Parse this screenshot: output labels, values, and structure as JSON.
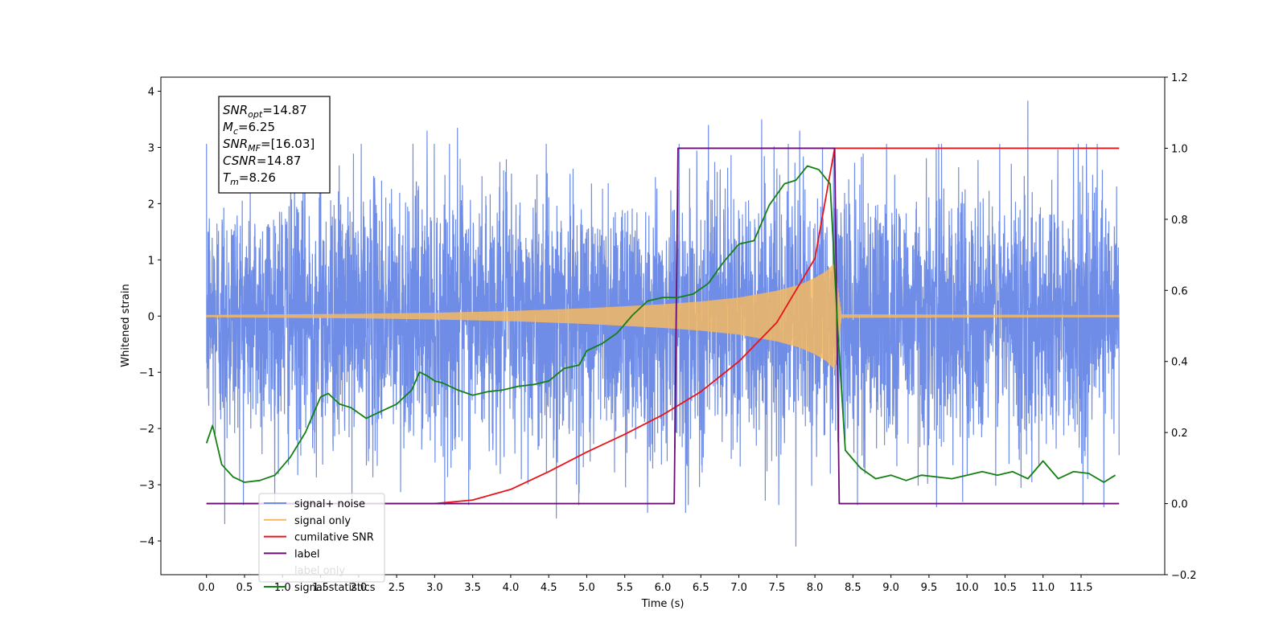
{
  "chart_data": {
    "type": "line",
    "xlabel": "Time (s)",
    "ylabel": "Whitened strain",
    "xlim": [
      -0.6,
      12.6
    ],
    "ylim": [
      -4.6,
      4.25
    ],
    "y2lim": [
      -0.2,
      1.2
    ],
    "xticks": [
      "0.0",
      "0.5",
      "1.0",
      "1.5",
      "2.0",
      "2.5",
      "3.0",
      "3.5",
      "4.0",
      "4.5",
      "5.0",
      "5.5",
      "6.0",
      "6.5",
      "7.0",
      "7.5",
      "8.0",
      "8.5",
      "9.0",
      "9.5",
      "10.0",
      "10.5",
      "11.0",
      "11.5"
    ],
    "yticks": [
      "4",
      "3",
      "2",
      "1",
      "0",
      "−1",
      "−2",
      "−3",
      "−4"
    ],
    "y2ticks": [
      "1.2",
      "1.0",
      "0.8",
      "0.6",
      "0.4",
      "0.2",
      "0.0",
      "−0.2"
    ],
    "grid": false,
    "legend_position": "lower-left",
    "annotation": {
      "lines": [
        {
          "sym": "SNR",
          "sub": "opt",
          "value": "=14.87"
        },
        {
          "sym": "M",
          "sub": "c",
          "value": "=6.25"
        },
        {
          "sym": "SNR",
          "sub": "MF",
          "value": "=[16.03]"
        },
        {
          "sym": "CSNR",
          "sub": "",
          "value": "=14.87"
        },
        {
          "sym": "T",
          "sub": "m",
          "value": "=8.26"
        }
      ]
    },
    "series": [
      {
        "name": "signal+ noise",
        "color": "#6f8de6",
        "axis": "left",
        "kind": "noise",
        "x_range": [
          0.0,
          12.0
        ],
        "typical_amplitude": 1.2,
        "peak_max": 3.83,
        "peak_min": -4.1,
        "strong_peaks": [
          [
            2.9,
            3.3
          ],
          [
            3.3,
            3.35
          ],
          [
            6.6,
            3.4
          ],
          [
            7.3,
            3.5
          ],
          [
            7.8,
            3.3
          ],
          [
            8.1,
            3.0
          ],
          [
            10.8,
            3.83
          ],
          [
            11.4,
            3.0
          ],
          [
            0.24,
            -3.7
          ],
          [
            4.6,
            -3.6
          ],
          [
            5.8,
            -3.5
          ],
          [
            6.3,
            -3.5
          ],
          [
            7.75,
            -4.1
          ],
          [
            9.6,
            -3.4
          ],
          [
            11.8,
            -3.4
          ]
        ]
      },
      {
        "name": "signal only",
        "color": "#f5b860",
        "axis": "left",
        "kind": "chirp",
        "x": [
          0.0,
          1.0,
          2.0,
          3.0,
          4.0,
          5.0,
          6.0,
          6.5,
          7.0,
          7.5,
          7.8,
          8.0,
          8.15,
          8.26,
          8.35,
          12.0
        ],
        "envelope": [
          0.02,
          0.03,
          0.04,
          0.06,
          0.09,
          0.14,
          0.21,
          0.26,
          0.33,
          0.45,
          0.56,
          0.68,
          0.8,
          0.95,
          0.03,
          0.02
        ]
      },
      {
        "name": "cumilative SNR",
        "color": "#e8141b",
        "axis": "right",
        "x": [
          0.0,
          3.0,
          3.5,
          4.0,
          4.5,
          5.0,
          5.5,
          6.0,
          6.5,
          7.0,
          7.5,
          8.0,
          8.26,
          12.0
        ],
        "values": [
          0.0,
          0.0,
          0.01,
          0.04,
          0.09,
          0.145,
          0.195,
          0.25,
          0.315,
          0.4,
          0.51,
          0.69,
          1.0,
          1.0
        ]
      },
      {
        "name": "label",
        "color": "#6a0d73",
        "axis": "right",
        "x": [
          0.0,
          6.15,
          6.2,
          8.26,
          8.32,
          12.0
        ],
        "values": [
          0.0,
          0.0,
          1.0,
          1.0,
          0.0,
          0.0
        ]
      },
      {
        "name": "label only",
        "color": "#ffffff",
        "axis": "right",
        "hidden": true,
        "x": [],
        "values": []
      },
      {
        "name": "signal statistics",
        "color": "#138013",
        "axis": "right",
        "x": [
          0.0,
          0.08,
          0.2,
          0.35,
          0.5,
          0.7,
          0.9,
          1.1,
          1.3,
          1.5,
          1.6,
          1.75,
          1.9,
          2.1,
          2.3,
          2.5,
          2.7,
          2.8,
          2.9,
          3.0,
          3.1,
          3.3,
          3.5,
          3.7,
          3.9,
          4.1,
          4.3,
          4.5,
          4.7,
          4.9,
          5.0,
          5.2,
          5.4,
          5.6,
          5.8,
          6.0,
          6.2,
          6.4,
          6.6,
          6.8,
          7.0,
          7.2,
          7.4,
          7.6,
          7.75,
          7.9,
          8.05,
          8.2,
          8.3,
          8.4,
          8.6,
          8.8,
          9.0,
          9.2,
          9.4,
          9.6,
          9.8,
          10.0,
          10.2,
          10.4,
          10.6,
          10.8,
          11.0,
          11.2,
          11.4,
          11.6,
          11.8,
          11.95
        ],
        "values": [
          0.17,
          0.22,
          0.11,
          0.075,
          0.06,
          0.065,
          0.08,
          0.13,
          0.2,
          0.3,
          0.31,
          0.28,
          0.27,
          0.24,
          0.26,
          0.28,
          0.32,
          0.37,
          0.36,
          0.345,
          0.34,
          0.32,
          0.305,
          0.315,
          0.32,
          0.33,
          0.335,
          0.345,
          0.38,
          0.39,
          0.43,
          0.45,
          0.48,
          0.53,
          0.57,
          0.58,
          0.58,
          0.59,
          0.62,
          0.68,
          0.73,
          0.74,
          0.84,
          0.9,
          0.91,
          0.95,
          0.94,
          0.9,
          0.49,
          0.15,
          0.1,
          0.07,
          0.08,
          0.065,
          0.08,
          0.075,
          0.07,
          0.08,
          0.09,
          0.08,
          0.09,
          0.07,
          0.12,
          0.07,
          0.09,
          0.085,
          0.06,
          0.08
        ]
      }
    ]
  }
}
